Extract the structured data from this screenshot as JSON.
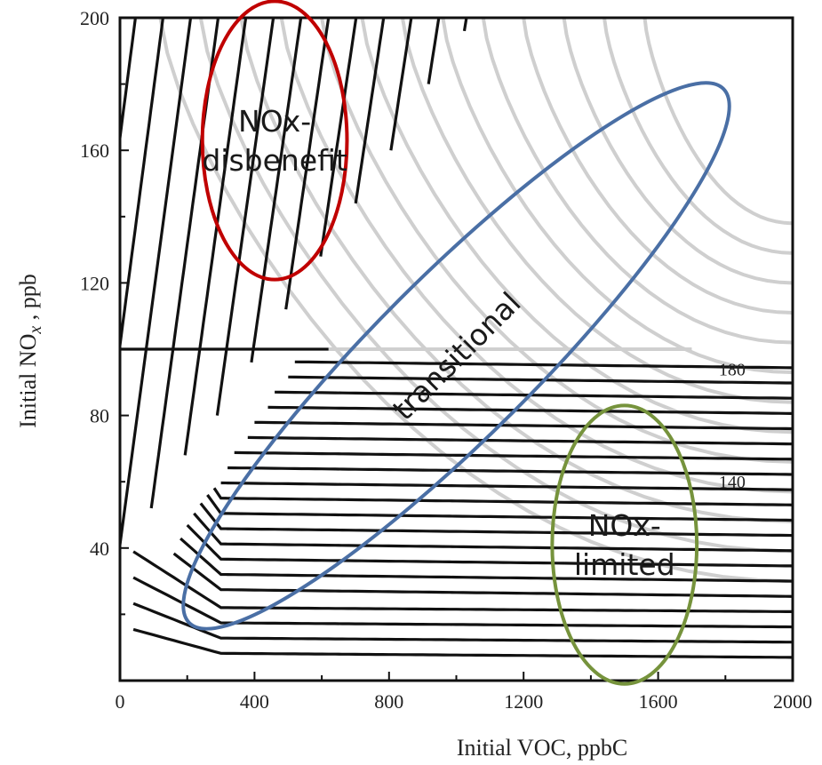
{
  "chart_data": {
    "type": "contour",
    "xlabel": "Initial   VOC,   ppbC",
    "ylabel": "Initial   NOx ,   ppb",
    "ylabel_parts": {
      "pre": "Initial   NO",
      "sub": "x",
      "post": " ,   ppb"
    },
    "xlim": [
      0,
      2000
    ],
    "ylim": [
      0,
      200
    ],
    "x_ticks": [
      "0",
      "400",
      "800",
      "1200",
      "1600",
      "2000"
    ],
    "y_ticks": [
      "40",
      "80",
      "120",
      "160",
      "200"
    ],
    "contour_labels": [
      {
        "text": "180",
        "x": 1820,
        "y": 94
      },
      {
        "text": "140",
        "x": 1820,
        "y": 60
      }
    ],
    "regions": [
      {
        "name": "nox-disbenefit",
        "lines": [
          "NOx-",
          "disbenefit"
        ],
        "color": "#c00000",
        "center": [
          460,
          163
        ],
        "radii": [
          430,
          21
        ],
        "angle": 0
      },
      {
        "name": "transitional",
        "lines": [
          "transitional"
        ],
        "color": "#4a6fa5",
        "center": [
          1000,
          98
        ],
        "radii": [
          980,
          16
        ],
        "angle": -45
      },
      {
        "name": "nox-limited",
        "lines": [
          "NOx-",
          "limited"
        ],
        "color": "#76933c",
        "center": [
          1500,
          41
        ],
        "radii": [
          430,
          21
        ],
        "angle": 0
      }
    ],
    "grid": false,
    "legend": "none"
  }
}
